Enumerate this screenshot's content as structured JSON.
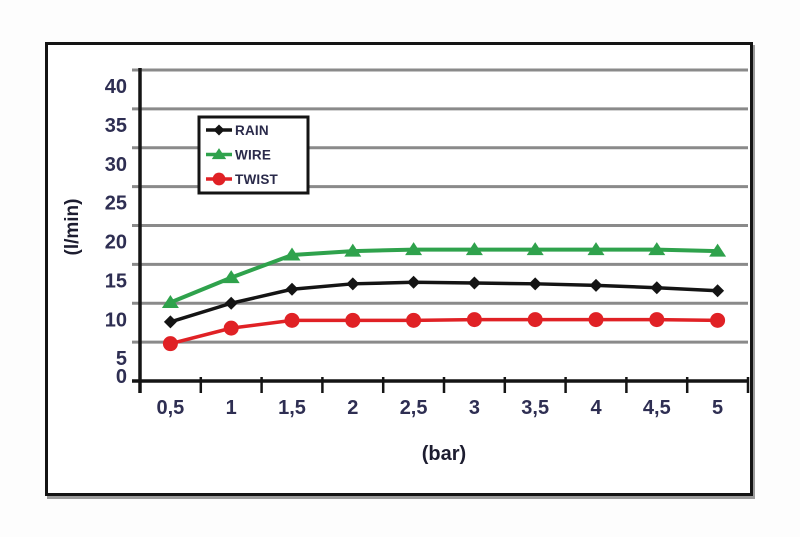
{
  "page": {
    "background": "#fdfdfd"
  },
  "figure": {
    "background": "#ffffff",
    "border_color": "#141414",
    "shadow_color": "#9b9b9b"
  },
  "chart_data": {
    "type": "line",
    "title": "",
    "xlabel": "(bar)",
    "ylabel": "(l/min)",
    "x": [
      0.5,
      1,
      1.5,
      2,
      2.5,
      3,
      3.5,
      4,
      4.5,
      5
    ],
    "x_tick_labels": [
      "0,5",
      "1",
      "1,5",
      "2",
      "2,5",
      "3",
      "3,5",
      "4",
      "4,5",
      "5"
    ],
    "y_ticks": [
      0,
      5,
      10,
      15,
      20,
      25,
      30,
      35,
      40
    ],
    "y_tick_labels": [
      "0",
      "5",
      "10",
      "15",
      "20",
      "25",
      "30",
      "35",
      "40"
    ],
    "ylim": [
      0,
      40
    ],
    "grid": "horizontal",
    "legend_position": "upper-left-inside",
    "series": [
      {
        "name": "RAIN",
        "color": "#141414",
        "marker": "diamond",
        "line_width": 3.5,
        "values": [
          7.6,
          10.0,
          11.8,
          12.5,
          12.7,
          12.6,
          12.5,
          12.3,
          12.0,
          11.6
        ]
      },
      {
        "name": "WIRE",
        "color": "#2fa24c",
        "marker": "triangle",
        "line_width": 4,
        "values": [
          10.1,
          13.3,
          16.2,
          16.7,
          16.9,
          16.9,
          16.9,
          16.9,
          16.9,
          16.7
        ]
      },
      {
        "name": "TWIST",
        "color": "#e02125",
        "marker": "circle",
        "line_width": 3.5,
        "values": [
          4.8,
          6.8,
          7.8,
          7.8,
          7.8,
          7.9,
          7.9,
          7.9,
          7.9,
          7.8
        ]
      }
    ],
    "colors": {
      "gridline": "#8a8a8a",
      "axis": "#141414",
      "tick_label": "#2e2e52",
      "axis_title": "#1d1d30",
      "legend_text": "#2a2a4a",
      "legend_border": "#141414",
      "legend_background": "#ffffff"
    }
  }
}
